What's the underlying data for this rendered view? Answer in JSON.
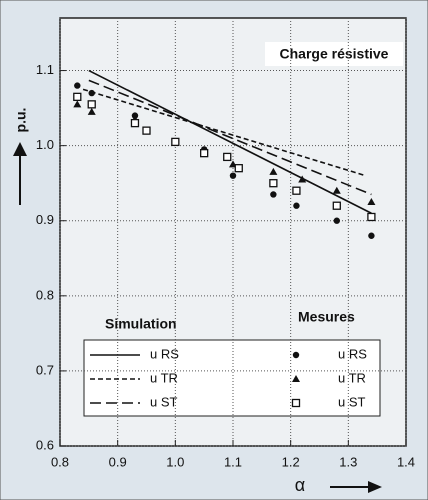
{
  "chart_data": {
    "type": "line",
    "title": "Charge résistive",
    "xlabel": "α",
    "ylabel": "p.u.",
    "annotations": [
      "Simulation",
      "Mesures"
    ],
    "xlim": [
      0.8,
      1.4
    ],
    "xticks": [
      0.8,
      0.9,
      {
        "value": 1,
        "label": "1.0"
      },
      1.1,
      1.2,
      1.3,
      1.4
    ],
    "ylim": [
      0.6,
      1.17
    ],
    "yticks": [
      0.6,
      0.7,
      0.8,
      0.9,
      {
        "value": 1,
        "label": "1.0"
      },
      1.1
    ],
    "grid": true,
    "series": [
      {
        "name": "u RS",
        "color": "#111111",
        "style": "line",
        "dash": "solid",
        "x": [
          0.85,
          1.34
        ],
        "values": [
          1.1,
          0.91
        ]
      },
      {
        "name": "u TR",
        "color": "#111111",
        "style": "line",
        "dash": "short",
        "x": [
          0.84,
          1.33
        ],
        "values": [
          1.075,
          0.96
        ]
      },
      {
        "name": "u ST",
        "color": "#111111",
        "style": "line",
        "dash": "long",
        "x": [
          0.85,
          1.34
        ],
        "values": [
          1.087,
          0.935
        ]
      },
      {
        "name": "u RS",
        "color": "#111111",
        "style": "scatter",
        "marker": "circle",
        "x": [
          0.83,
          0.855,
          0.93,
          1.05,
          1.1,
          1.17,
          1.21,
          1.28,
          1.34
        ],
        "values": [
          1.08,
          1.07,
          1.04,
          0.995,
          0.96,
          0.935,
          0.92,
          0.9,
          0.88
        ]
      },
      {
        "name": "u TR",
        "color": "#111111",
        "style": "scatter",
        "marker": "triangle",
        "x": [
          0.83,
          0.855,
          0.93,
          1.05,
          1.1,
          1.17,
          1.22,
          1.28,
          1.34
        ],
        "values": [
          1.055,
          1.045,
          1.035,
          0.99,
          0.975,
          0.965,
          0.955,
          0.94,
          0.925
        ]
      },
      {
        "name": "u ST",
        "color": "#111111",
        "style": "scatter",
        "marker": "square",
        "x": [
          0.83,
          0.855,
          0.93,
          0.95,
          1.0,
          1.05,
          1.09,
          1.11,
          1.17,
          1.21,
          1.28,
          1.34
        ],
        "values": [
          1.065,
          1.055,
          1.03,
          1.02,
          1.005,
          0.99,
          0.985,
          0.97,
          0.95,
          0.94,
          0.92,
          0.905
        ]
      }
    ]
  }
}
